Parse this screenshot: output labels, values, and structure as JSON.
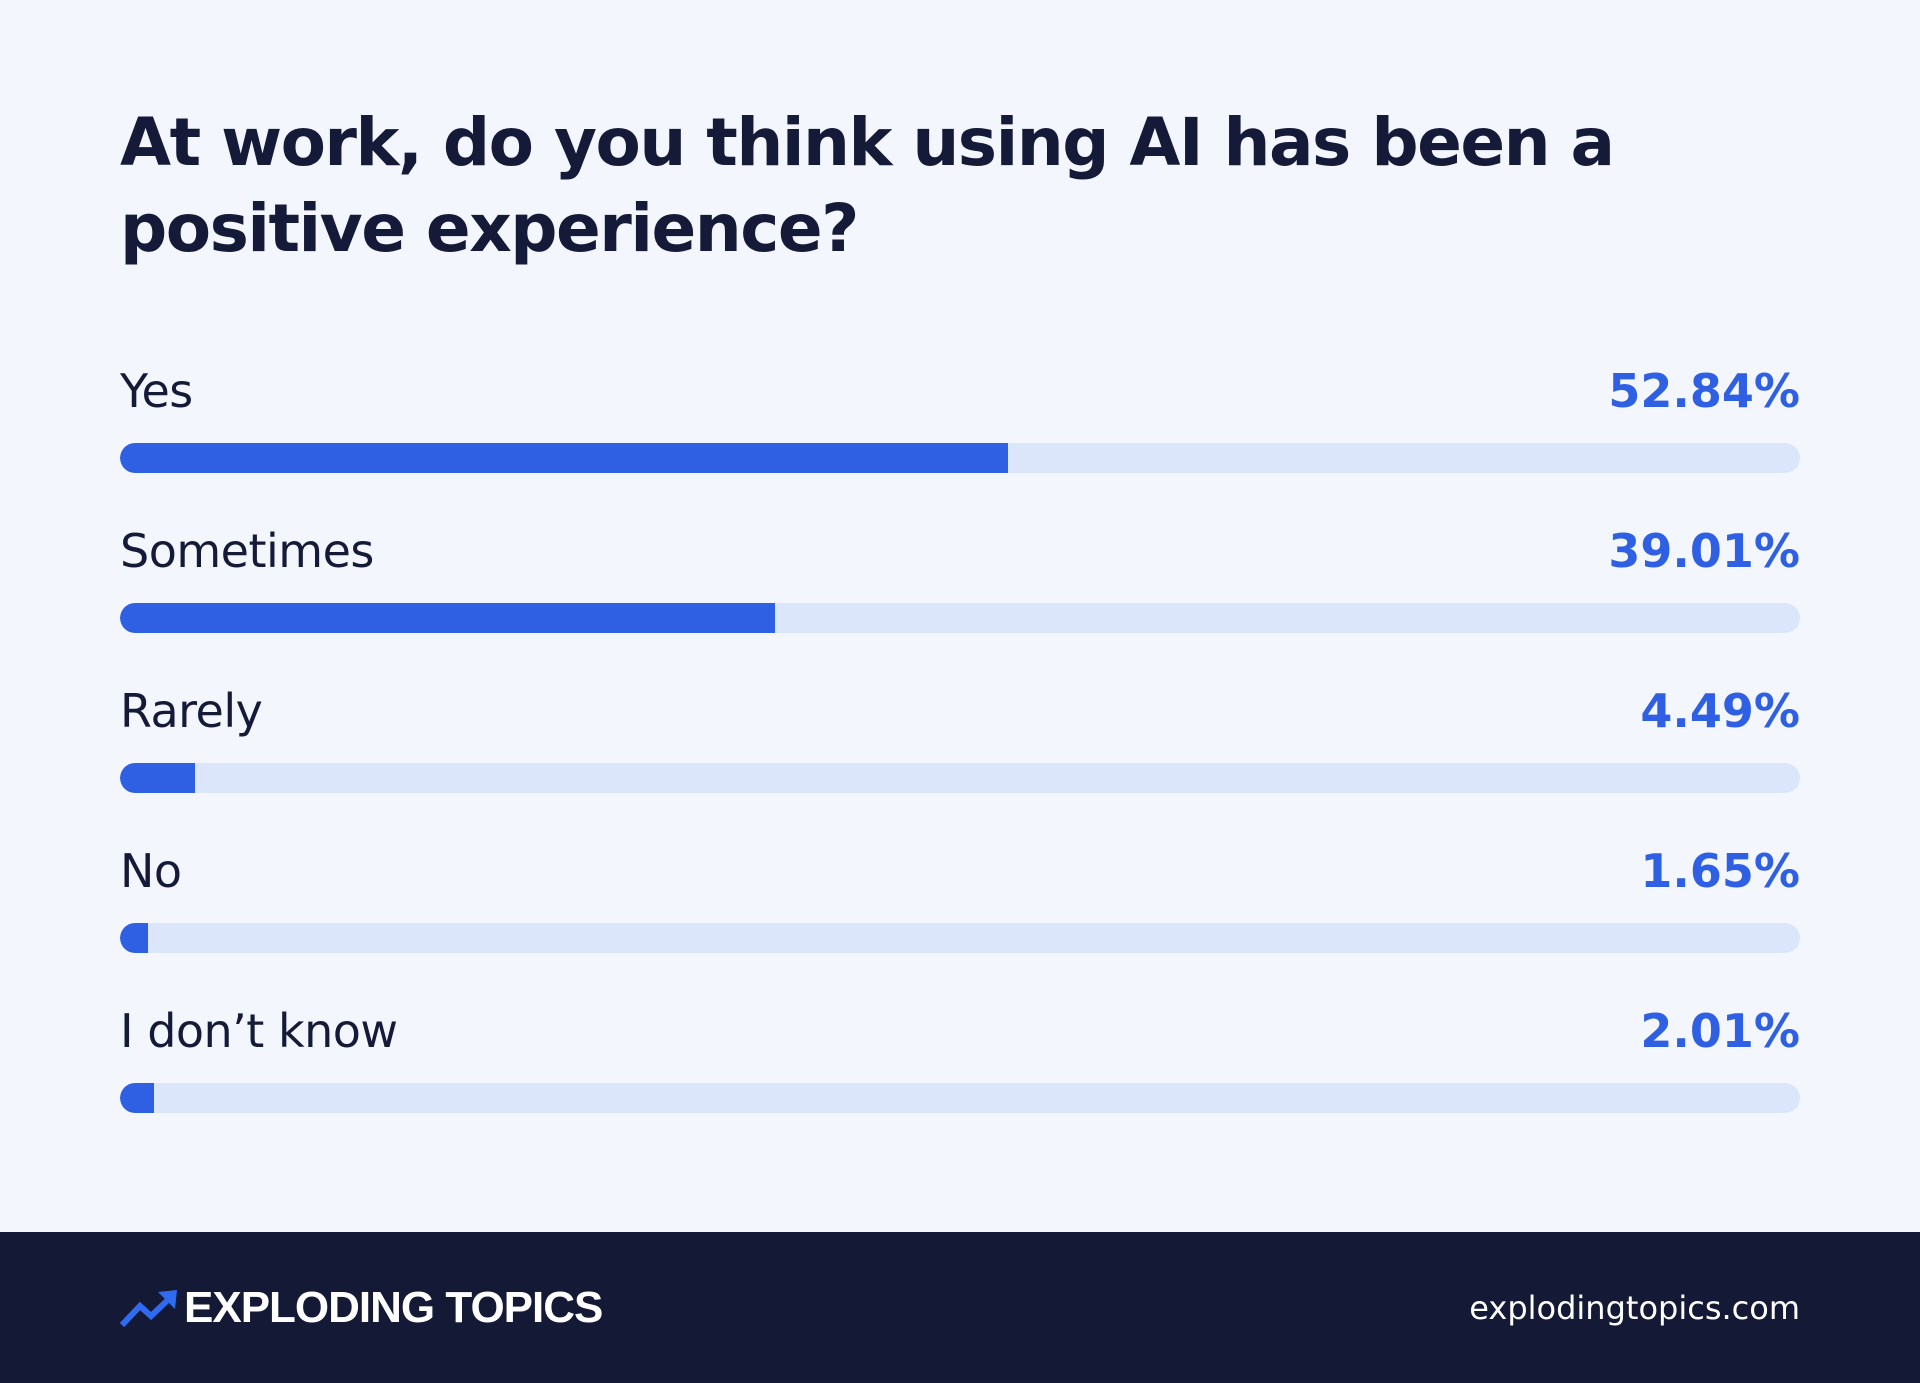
{
  "chart_data": {
    "type": "bar",
    "orientation": "horizontal",
    "title": "At work, do you think using AI has been a positive experience?",
    "categories": [
      "Yes",
      "Sometimes",
      "Rarely",
      "No",
      "I don’t know"
    ],
    "values": [
      52.84,
      39.01,
      4.49,
      1.65,
      2.01
    ],
    "value_labels": [
      "52.84%",
      "39.01%",
      "4.49%",
      "1.65%",
      "2.01%"
    ],
    "xlim": [
      0,
      100
    ],
    "grid": false,
    "colors": {
      "fill": "#2f5fe3",
      "track": "#dce6fb",
      "label": "#141a38",
      "value": "#2f5fe3"
    }
  },
  "footer": {
    "brand": "EXPLODING TOPICS",
    "brand_icon": "trending-up-arrow-icon",
    "url": "explodingtopics.com",
    "background": "#141935"
  },
  "page": {
    "background": "#f3f7fd"
  }
}
